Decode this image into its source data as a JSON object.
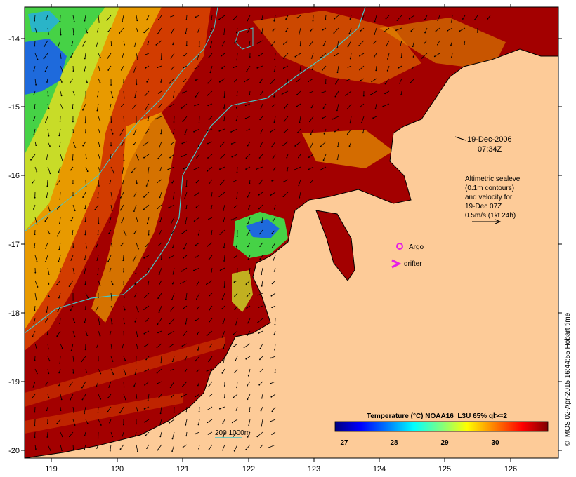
{
  "map": {
    "date": "19-Dec-2006",
    "time": "07:34Z",
    "colors": {
      "land": "#fdcb98",
      "warm": "#a30000",
      "mid": "#d23c00",
      "cool_green": "#46d246",
      "cool_blue": "#1e6adc",
      "contour": "#46c8c8",
      "argo": "#e61ee6",
      "drifter": "#e61ee6"
    }
  },
  "axes": {
    "x_ticks": [
      "119",
      "120",
      "121",
      "122",
      "123",
      "124",
      "125",
      "126"
    ],
    "y_ticks": [
      "-14",
      "-15",
      "-16",
      "-17",
      "-18",
      "-19",
      "-20"
    ]
  },
  "legend": {
    "altimetry_lines": [
      "Altimetric sealevel",
      "(0.1m contours)",
      "and velocity for",
      "19-Dec 07Z",
      "0.5m/s (1kt 24h)"
    ],
    "argo_label": "Argo",
    "drifter_label": "drifter",
    "depth_label": "200  1000m"
  },
  "colorbar": {
    "title": "Temperature (°C) NOAA16_L3U 65% ql>=2",
    "ticks": [
      "27",
      "28",
      "29",
      "30"
    ],
    "stops": [
      "#00007f",
      "#0000ff",
      "#007fff",
      "#00ffff",
      "#7fff7f",
      "#ffff00",
      "#ff7f00",
      "#ff0000",
      "#7f0000"
    ]
  },
  "credit": "© IMOS 02-Apr-2015 16:44:55 Hobart time"
}
